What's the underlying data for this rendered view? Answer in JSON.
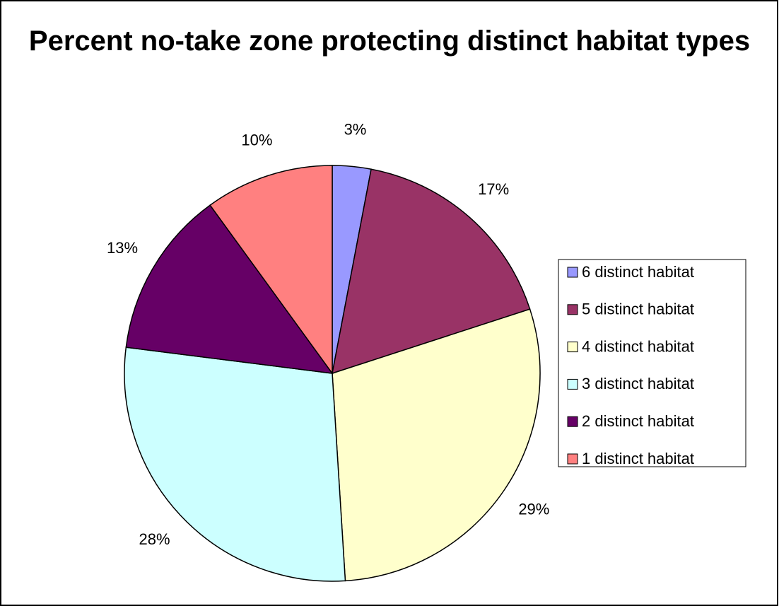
{
  "chart_data": {
    "type": "pie",
    "title": "Percent no-take zone protecting distinct habitat types",
    "categories": [
      "6 distinct habitat",
      "5 distinct habitat",
      "4 distinct habitat",
      "3 distinct habitat",
      "2 distinct habitat",
      "1 distinct habitat"
    ],
    "values": [
      3,
      17,
      29,
      28,
      13,
      10
    ],
    "value_labels": [
      "3%",
      "17%",
      "29%",
      "28%",
      "13%",
      "10%"
    ],
    "colors": [
      "#9999ff",
      "#993366",
      "#ffffcc",
      "#ccffff",
      "#660066",
      "#ff8080"
    ],
    "legend": "right"
  }
}
